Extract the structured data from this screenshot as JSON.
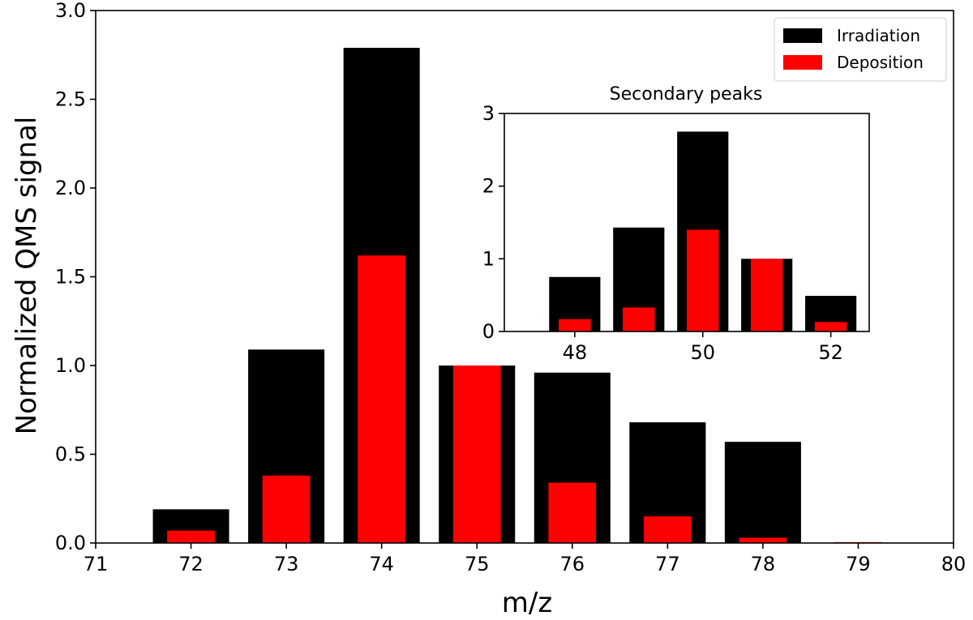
{
  "chart_data": [
    {
      "type": "bar",
      "title": "",
      "xlabel": "m/z",
      "ylabel": "Normalized QMS signal",
      "xlim": [
        71,
        80
      ],
      "ylim": [
        0,
        3.0
      ],
      "xticks": [
        "71",
        "72",
        "73",
        "74",
        "75",
        "76",
        "77",
        "78",
        "79",
        "80"
      ],
      "yticks": [
        "0.0",
        "0.5",
        "1.0",
        "1.5",
        "2.0",
        "2.5",
        "3.0"
      ],
      "x": [
        72,
        73,
        74,
        75,
        76,
        77,
        78,
        79
      ],
      "series": [
        {
          "name": "Irradiation",
          "color": "#000000",
          "values": [
            0.19,
            1.09,
            2.79,
            1.0,
            0.96,
            0.68,
            0.57,
            0.0
          ]
        },
        {
          "name": "Deposition",
          "color": "#ff0000",
          "values": [
            0.07,
            0.38,
            1.62,
            1.0,
            0.34,
            0.15,
            0.03,
            0.005
          ]
        }
      ],
      "legend": {
        "position": "top-right",
        "entries": [
          "Irradiation",
          "Deposition"
        ]
      }
    },
    {
      "type": "bar",
      "title": "Secondary peaks",
      "xlabel": "",
      "ylabel": "",
      "xlim": [
        46.9,
        52.6
      ],
      "ylim": [
        0,
        3
      ],
      "xticks": [
        "48",
        "50",
        "52"
      ],
      "yticks": [
        "0",
        "1",
        "2",
        "3"
      ],
      "x": [
        48,
        49,
        50,
        51,
        52
      ],
      "series": [
        {
          "name": "Irradiation",
          "color": "#000000",
          "values": [
            0.75,
            1.43,
            2.75,
            1.0,
            0.49
          ]
        },
        {
          "name": "Deposition",
          "color": "#ff0000",
          "values": [
            0.17,
            0.33,
            1.4,
            1.0,
            0.13
          ]
        }
      ]
    }
  ]
}
